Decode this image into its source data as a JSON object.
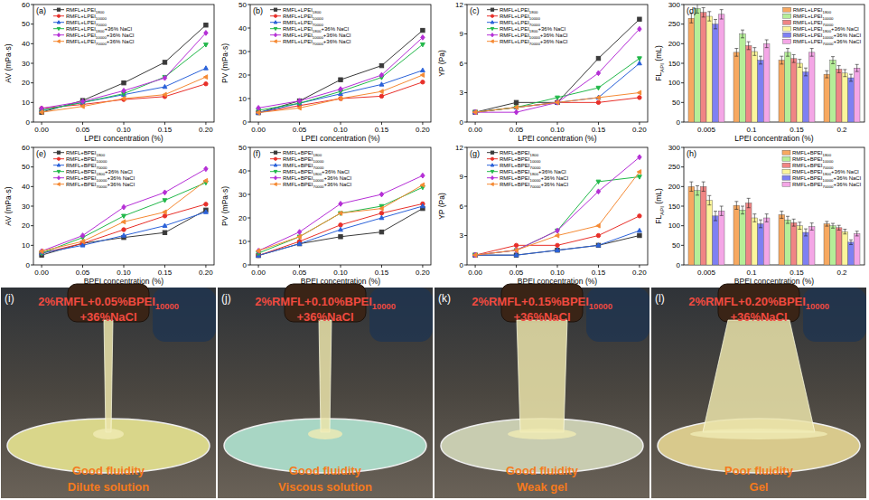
{
  "chart_data": [
    {
      "type": "line",
      "title": "(a)",
      "x": [
        0,
        0.05,
        0.1,
        0.15,
        0.2
      ],
      "xlim": [
        -0.01,
        0.21
      ],
      "xticks": [
        {
          "value": 0,
          "label": "0.00"
        },
        0.05,
        {
          "value": 0.1,
          "label": "0.10"
        },
        0.15,
        {
          "value": 0.2,
          "label": "0.20"
        }
      ],
      "ylim": [
        0,
        60
      ],
      "yticks": [
        0,
        10,
        20,
        30,
        40,
        50,
        60
      ],
      "x_label": "LPEI concentration (%)",
      "y_label": "AV (mPa·s)",
      "legend": "upper left",
      "grid": false,
      "series": [
        {
          "name": "RMFL+LPEI1800",
          "color": "#3a3a3a",
          "marker": "square",
          "values": [
            5,
            11,
            20,
            30.5,
            49.5
          ]
        },
        {
          "name": "RMFL+LPEI10000",
          "color": "#e8302a",
          "marker": "circle",
          "values": [
            7,
            9,
            11.5,
            13,
            19.5
          ]
        },
        {
          "name": "RMFL+LPEI70000",
          "color": "#2b62d9",
          "marker": "triangle-up",
          "values": [
            6,
            10,
            14,
            18,
            27.5
          ]
        },
        {
          "name": "RMFL+LPEI1800+36% NaCl",
          "color": "#22b84a",
          "marker": "triangle-down",
          "values": [
            6,
            10,
            14.5,
            23,
            39.5
          ]
        },
        {
          "name": "RMFL+LPEI10000+36% NaCl",
          "color": "#b52fd6",
          "marker": "diamond",
          "values": [
            7,
            10.5,
            16,
            22.5,
            45.5
          ]
        },
        {
          "name": "RMFL+LPEI70000+36% NaCl",
          "color": "#f58a34",
          "marker": "triangle-left",
          "values": [
            5,
            8,
            12,
            14,
            23
          ]
        }
      ]
    },
    {
      "type": "line",
      "title": "(b)",
      "x": [
        0,
        0.05,
        0.1,
        0.15,
        0.2
      ],
      "xlim": [
        -0.01,
        0.21
      ],
      "xticks": [
        {
          "value": 0,
          "label": "0.00"
        },
        0.05,
        {
          "value": 0.1,
          "label": "0.10"
        },
        0.15,
        {
          "value": 0.2,
          "label": "0.20"
        }
      ],
      "ylim": [
        0,
        50
      ],
      "yticks": [
        0,
        10,
        20,
        30,
        40,
        50
      ],
      "x_label": "LPEI concentration (%)",
      "y_label": "PV (mPa·s)",
      "legend": "upper left",
      "grid": false,
      "series": [
        {
          "name": "RMFL+LPEI1800",
          "color": "#3a3a3a",
          "marker": "square",
          "values": [
            4,
            9,
            18,
            24,
            39
          ]
        },
        {
          "name": "RMFL+LPEI10000",
          "color": "#e8302a",
          "marker": "circle",
          "values": [
            4,
            7,
            10,
            11,
            17
          ]
        },
        {
          "name": "RMFL+LPEI70000",
          "color": "#2b62d9",
          "marker": "triangle-up",
          "values": [
            4,
            8,
            12,
            16,
            22
          ]
        },
        {
          "name": "RMFL+LPEI1800+36% NaCl",
          "color": "#22b84a",
          "marker": "triangle-down",
          "values": [
            5,
            8,
            13,
            19,
            33
          ]
        },
        {
          "name": "RMFL+LPEI10000+36% NaCl",
          "color": "#b52fd6",
          "marker": "diamond",
          "values": [
            6,
            9,
            14,
            20,
            36
          ]
        },
        {
          "name": "RMFL+LPEI70000+36% NaCl",
          "color": "#f58a34",
          "marker": "triangle-left",
          "values": [
            4,
            6,
            10,
            13,
            20
          ]
        }
      ]
    },
    {
      "type": "line",
      "title": "(c)",
      "x": [
        0,
        0.05,
        0.1,
        0.15,
        0.2
      ],
      "xlim": [
        -0.01,
        0.21
      ],
      "xticks": [
        {
          "value": 0,
          "label": "0.00"
        },
        0.05,
        {
          "value": 0.1,
          "label": "0.10"
        },
        0.15,
        {
          "value": 0.2,
          "label": "0.20"
        }
      ],
      "ylim": [
        0,
        12
      ],
      "yticks": [
        0,
        3,
        6,
        9,
        12
      ],
      "x_label": "LPEI concentration (%)",
      "y_label": "YP (Pa)",
      "legend": "upper left",
      "grid": false,
      "series": [
        {
          "name": "RMFL+LPEI1800",
          "color": "#3a3a3a",
          "marker": "square",
          "values": [
            1,
            2,
            2,
            6.5,
            10.5
          ]
        },
        {
          "name": "RMFL+LPEI10000",
          "color": "#e8302a",
          "marker": "circle",
          "values": [
            1,
            1.5,
            2,
            2,
            2.5
          ]
        },
        {
          "name": "RMFL+LPEI70000",
          "color": "#2b62d9",
          "marker": "triangle-up",
          "values": [
            1,
            1.5,
            2,
            2.5,
            6
          ]
        },
        {
          "name": "RMFL+LPEI1800+36% NaCl",
          "color": "#22b84a",
          "marker": "triangle-down",
          "values": [
            1,
            1.5,
            2.5,
            3.5,
            6.5
          ]
        },
        {
          "name": "RMFL+LPEI10000+36% NaCl",
          "color": "#b52fd6",
          "marker": "diamond",
          "values": [
            1,
            1,
            2,
            5,
            9.5
          ]
        },
        {
          "name": "RMFL+LPEI70000+36% NaCl",
          "color": "#f58a34",
          "marker": "triangle-left",
          "values": [
            1,
            1.5,
            2,
            2.5,
            3
          ]
        }
      ]
    },
    {
      "type": "bar",
      "title": "(d)",
      "categories": [
        "0.005",
        "0.1",
        "0.15",
        "0.2"
      ],
      "ylim": [
        0,
        300
      ],
      "yticks": [
        0,
        50,
        100,
        150,
        200,
        250,
        300
      ],
      "x_label": "LPEI concentration (%)",
      "y_label": "FLAPI (mL)",
      "legend": "upper right",
      "grid": false,
      "series": [
        {
          "name": "RMFL+LPEI1800",
          "color": "#f7a860",
          "values": [
            265,
            178,
            158,
            122
          ],
          "errors": [
            12,
            10,
            10,
            9
          ]
        },
        {
          "name": "RMFL+LPEI10000",
          "color": "#b5ee98",
          "values": [
            290,
            225,
            178,
            158
          ],
          "errors": [
            12,
            10,
            10,
            9
          ]
        },
        {
          "name": "RMFL+LPEI70000",
          "color": "#f08585",
          "values": [
            280,
            195,
            162,
            135
          ],
          "errors": [
            12,
            10,
            10,
            9
          ]
        },
        {
          "name": "RMFL+LPEI1800+36% NaCl",
          "color": "#fbf59b",
          "values": [
            270,
            180,
            150,
            125
          ],
          "errors": [
            12,
            10,
            10,
            9
          ]
        },
        {
          "name": "RMFL+LPEI10000+36% NaCl",
          "color": "#7e80f2",
          "values": [
            250,
            158,
            128,
            113
          ],
          "errors": [
            12,
            10,
            10,
            9
          ]
        },
        {
          "name": "RMFL+LPEI70000+36% NaCl",
          "color": "#f4a6e6",
          "values": [
            275,
            200,
            178,
            138
          ],
          "errors": [
            12,
            10,
            10,
            9
          ]
        }
      ]
    },
    {
      "type": "line",
      "title": "(e)",
      "x": [
        0,
        0.05,
        0.1,
        0.15,
        0.2
      ],
      "xlim": [
        -0.01,
        0.21
      ],
      "xticks": [
        {
          "value": 0,
          "label": "0.00"
        },
        0.05,
        {
          "value": 0.1,
          "label": "0.10"
        },
        0.15,
        {
          "value": 0.2,
          "label": "0.20"
        }
      ],
      "ylim": [
        0,
        60
      ],
      "yticks": [
        0,
        10,
        20,
        30,
        40,
        50,
        60
      ],
      "x_label": "BPEI concentration (%)",
      "y_label": "AV (mPa·s)",
      "legend": "upper left",
      "grid": false,
      "series": [
        {
          "name": "RMFL+BPEI1800",
          "color": "#3a3a3a",
          "marker": "square",
          "values": [
            5,
            11,
            14,
            16.5,
            28
          ]
        },
        {
          "name": "RMFL+BPEI10000",
          "color": "#e8302a",
          "marker": "circle",
          "values": [
            6,
            11,
            18,
            25,
            31
          ]
        },
        {
          "name": "RMFL+BPEI70000",
          "color": "#2b62d9",
          "marker": "triangle-up",
          "values": [
            6,
            10,
            15,
            20,
            27
          ]
        },
        {
          "name": "RMFL+BPEI1800+36% NaCl",
          "color": "#22b84a",
          "marker": "triangle-down",
          "values": [
            6,
            14,
            25,
            33,
            42
          ]
        },
        {
          "name": "RMFL+BPEI10000+36% NaCl",
          "color": "#b52fd6",
          "marker": "diamond",
          "values": [
            7,
            15,
            29.5,
            37,
            49
          ]
        },
        {
          "name": "RMFL+BPEI70000+36% NaCl",
          "color": "#f58a34",
          "marker": "triangle-left",
          "values": [
            7,
            12,
            22,
            27,
            43
          ]
        }
      ]
    },
    {
      "type": "line",
      "title": "(f)",
      "x": [
        0,
        0.05,
        0.1,
        0.15,
        0.2
      ],
      "xlim": [
        -0.01,
        0.21
      ],
      "xticks": [
        {
          "value": 0,
          "label": "0.00"
        },
        0.05,
        {
          "value": 0.1,
          "label": "0.10"
        },
        0.15,
        {
          "value": 0.2,
          "label": "0.20"
        }
      ],
      "ylim": [
        0,
        50
      ],
      "yticks": [
        0,
        10,
        20,
        30,
        40,
        50
      ],
      "x_label": "BPEI concentration (%)",
      "y_label": "PV (mPa·s)",
      "legend": "upper left",
      "grid": false,
      "series": [
        {
          "name": "RMFL+BPEI1800",
          "color": "#3a3a3a",
          "marker": "square",
          "values": [
            4,
            9,
            12,
            14,
            24
          ]
        },
        {
          "name": "RMFL+BPEI10000",
          "color": "#e8302a",
          "marker": "circle",
          "values": [
            4,
            10,
            17,
            22,
            26
          ]
        },
        {
          "name": "RMFL+BPEI70000",
          "color": "#2b62d9",
          "marker": "triangle-up",
          "values": [
            4,
            9,
            15,
            20,
            25
          ]
        },
        {
          "name": "RMFL+BPEI1800+36% NaCl",
          "color": "#22b84a",
          "marker": "triangle-down",
          "values": [
            5,
            12,
            22,
            25,
            33
          ]
        },
        {
          "name": "RMFL+BPEI10000+36% NaCl",
          "color": "#b52fd6",
          "marker": "diamond",
          "values": [
            6,
            14,
            26,
            30,
            38
          ]
        },
        {
          "name": "RMFL+BPEI70000+36% NaCl",
          "color": "#f58a34",
          "marker": "triangle-left",
          "values": [
            6,
            12,
            22,
            24,
            34
          ]
        }
      ]
    },
    {
      "type": "line",
      "title": "(g)",
      "x": [
        0,
        0.05,
        0.1,
        0.15,
        0.2
      ],
      "xlim": [
        -0.01,
        0.21
      ],
      "xticks": [
        {
          "value": 0,
          "label": "0.00"
        },
        0.05,
        {
          "value": 0.1,
          "label": "0.10"
        },
        0.15,
        {
          "value": 0.2,
          "label": "0.20"
        }
      ],
      "ylim": [
        0,
        12
      ],
      "yticks": [
        0,
        3,
        6,
        9,
        12
      ],
      "x_label": "BPEI concentration (%)",
      "y_label": "YP (Pa)",
      "legend": "upper left",
      "grid": false,
      "series": [
        {
          "name": "RMFL+BPEI1800",
          "color": "#3a3a3a",
          "marker": "square",
          "values": [
            1,
            1,
            1.5,
            2,
            3
          ]
        },
        {
          "name": "RMFL+BPEI10000",
          "color": "#e8302a",
          "marker": "circle",
          "values": [
            1,
            2,
            2,
            3,
            5
          ]
        },
        {
          "name": "RMFL+BPEI70000",
          "color": "#2b62d9",
          "marker": "triangle-up",
          "values": [
            1,
            1,
            1.5,
            2,
            3.5
          ]
        },
        {
          "name": "RMFL+BPEI1800+36% NaCl",
          "color": "#22b84a",
          "marker": "triangle-down",
          "values": [
            1,
            1.5,
            3.5,
            8.5,
            9
          ]
        },
        {
          "name": "RMFL+BPEI10000+36% NaCl",
          "color": "#b52fd6",
          "marker": "diamond",
          "values": [
            1,
            1.5,
            3.5,
            7.5,
            11
          ]
        },
        {
          "name": "RMFL+BPEI70000+36% NaCl",
          "color": "#f58a34",
          "marker": "triangle-left",
          "values": [
            1,
            1.5,
            3,
            4,
            9.5
          ]
        }
      ]
    },
    {
      "type": "bar",
      "title": "(h)",
      "categories": [
        "0.005",
        "0.1",
        "0.15",
        "0.2"
      ],
      "ylim": [
        0,
        300
      ],
      "yticks": [
        0,
        50,
        100,
        150,
        200,
        250,
        300
      ],
      "x_label": "BPEI concentration (%)",
      "y_label": "FLAPI (mL)",
      "legend": "upper right",
      "grid": false,
      "series": [
        {
          "name": "RMFL+BPEI1800",
          "color": "#f7a860",
          "values": [
            200,
            152,
            128,
            105
          ],
          "errors": [
            12,
            10,
            9,
            6
          ]
        },
        {
          "name": "RMFL+BPEI10000",
          "color": "#b5ee98",
          "values": [
            190,
            140,
            115,
            100
          ],
          "errors": [
            12,
            10,
            9,
            6
          ]
        },
        {
          "name": "RMFL+BPEI70000",
          "color": "#f08585",
          "values": [
            200,
            158,
            108,
            95
          ],
          "errors": [
            12,
            12,
            9,
            6
          ]
        },
        {
          "name": "RMFL+BPEI1800+36% NaCl",
          "color": "#fbf59b",
          "values": [
            165,
            120,
            100,
            85
          ],
          "errors": [
            12,
            10,
            9,
            6
          ]
        },
        {
          "name": "RMFL+BPEI10000+36% NaCl",
          "color": "#7e80f2",
          "values": [
            125,
            105,
            83,
            58
          ],
          "errors": [
            12,
            10,
            9,
            6
          ]
        },
        {
          "name": "RMFL+BPEI70000+36% NaCl",
          "color": "#f4a6e6",
          "values": [
            138,
            120,
            98,
            80
          ],
          "errors": [
            12,
            10,
            9,
            6
          ]
        }
      ]
    }
  ],
  "photos": [
    {
      "title": "(i)",
      "sample": "2%RMFL+0.05%BPEI10000+36%NaCl",
      "fluidity": "Good fluidity",
      "state": "Dilute solution"
    },
    {
      "title": "(j)",
      "sample": "2%RMFL+0.10%BPEI10000+36%NaCl",
      "fluidity": "Good fluidity",
      "state": "Viscous solution"
    },
    {
      "title": "(k)",
      "sample": "2%RMFL+0.15%BPEI10000+36%NaCl",
      "fluidity": "Good fluidity",
      "state": "Weak gel"
    },
    {
      "title": "(l)",
      "sample": "2%RMFL+0.20%BPEI10000+36%NaCl",
      "fluidity": "Poor fluidity",
      "state": "Gel"
    }
  ]
}
